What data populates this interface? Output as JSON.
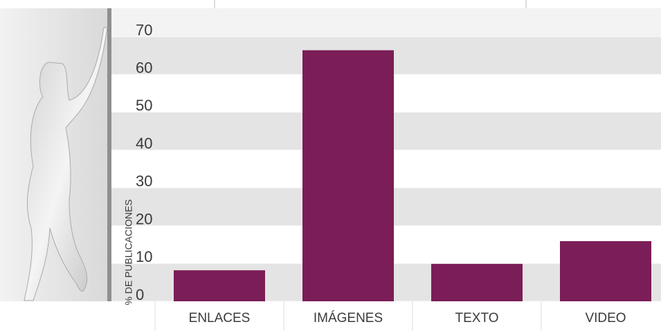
{
  "chart_data": {
    "type": "bar",
    "y_label": "% DE PUBLICACIONES",
    "categories": [
      "ENLACES",
      "IMÁGENES",
      "TEXTO",
      "VIDEO"
    ],
    "values": [
      8.2,
      66.4,
      9.9,
      15.9
    ],
    "color": "#7b1d57",
    "ylim": [
      0,
      70
    ],
    "yticks": [
      0,
      10,
      20,
      30,
      40,
      50,
      60,
      70
    ],
    "grid": true
  }
}
